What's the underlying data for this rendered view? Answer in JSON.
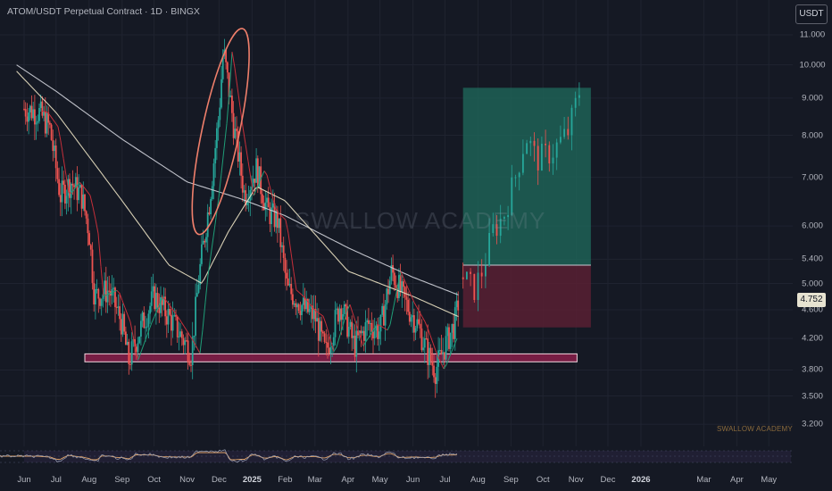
{
  "header": {
    "title": "ATOM/USDT Perpetual Contract · 1D · BINGX",
    "currency_button": "USDT"
  },
  "last_price_label": "4.752",
  "watermark": "SWALLOW ACADEMY",
  "colors": {
    "background": "#151924",
    "up_candle": "#26a69a",
    "down_candle": "#ef5350",
    "ma_long": "#d1d4dc",
    "ma_mid": "#ece3c4",
    "ma_short_red": "#c62f3a",
    "ma_short_green": "#1f9e78",
    "support_zone": "#8a1e4a",
    "target_zone": "#1f6b5c",
    "stop_zone": "#5c1f33",
    "ellipse": "#ef7f6b"
  },
  "chart_data": {
    "type": "candlestick",
    "price_scale": "log",
    "y_ticks": [
      "11.000",
      "10.000",
      "9.000",
      "8.000",
      "7.000",
      "6.000",
      "5.400",
      "5.000",
      "4.600",
      "4.200",
      "3.800",
      "3.500",
      "3.200"
    ],
    "x_ticks": [
      "Jun",
      "Jul",
      "Aug",
      "Sep",
      "Oct",
      "Nov",
      "Dec",
      "2025",
      "Feb",
      "Mar",
      "Apr",
      "May",
      "Jun",
      "Jul",
      "Aug",
      "Sep",
      "Oct",
      "Nov",
      "Dec",
      "2026",
      "Mar",
      "Apr",
      "May"
    ],
    "price_path": [
      {
        "x": "2024-06-01",
        "y": 8.7
      },
      {
        "x": "2024-06-15",
        "y": 8.6
      },
      {
        "x": "2024-06-25",
        "y": 8.2
      },
      {
        "x": "2024-07-05",
        "y": 6.6
      },
      {
        "x": "2024-07-15",
        "y": 6.9
      },
      {
        "x": "2024-07-25",
        "y": 6.6
      },
      {
        "x": "2024-08-01",
        "y": 5.9
      },
      {
        "x": "2024-08-06",
        "y": 4.8
      },
      {
        "x": "2024-08-20",
        "y": 4.9
      },
      {
        "x": "2024-09-01",
        "y": 4.4
      },
      {
        "x": "2024-09-07",
        "y": 3.9
      },
      {
        "x": "2024-09-20",
        "y": 4.4
      },
      {
        "x": "2024-10-01",
        "y": 4.8
      },
      {
        "x": "2024-10-15",
        "y": 4.5
      },
      {
        "x": "2024-10-28",
        "y": 4.2
      },
      {
        "x": "2024-11-05",
        "y": 4.0
      },
      {
        "x": "2024-11-12",
        "y": 5.1
      },
      {
        "x": "2024-11-22",
        "y": 6.5
      },
      {
        "x": "2024-12-01",
        "y": 8.6
      },
      {
        "x": "2024-12-05",
        "y": 10.5
      },
      {
        "x": "2024-12-15",
        "y": 8.2
      },
      {
        "x": "2024-12-25",
        "y": 6.6
      },
      {
        "x": "2025-01-05",
        "y": 7.2
      },
      {
        "x": "2025-01-15",
        "y": 6.3
      },
      {
        "x": "2025-01-25",
        "y": 6.1
      },
      {
        "x": "2025-02-03",
        "y": 4.9
      },
      {
        "x": "2025-02-10",
        "y": 4.8
      },
      {
        "x": "2025-02-20",
        "y": 4.6
      },
      {
        "x": "2025-03-01",
        "y": 4.5
      },
      {
        "x": "2025-03-11",
        "y": 4.0
      },
      {
        "x": "2025-03-25",
        "y": 4.7
      },
      {
        "x": "2025-04-07",
        "y": 4.1
      },
      {
        "x": "2025-04-20",
        "y": 4.4
      },
      {
        "x": "2025-05-01",
        "y": 4.3
      },
      {
        "x": "2025-05-12",
        "y": 5.2
      },
      {
        "x": "2025-05-25",
        "y": 4.7
      },
      {
        "x": "2025-06-05",
        "y": 4.4
      },
      {
        "x": "2025-06-15",
        "y": 4.0
      },
      {
        "x": "2025-06-22",
        "y": 3.8
      },
      {
        "x": "2025-07-01",
        "y": 4.1
      },
      {
        "x": "2025-07-10",
        "y": 4.4
      },
      {
        "x": "2025-07-14",
        "y": 4.75
      }
    ],
    "projection_path": [
      {
        "x": "2025-07-18",
        "y": 5.1
      },
      {
        "x": "2025-07-28",
        "y": 4.9
      },
      {
        "x": "2025-08-05",
        "y": 5.2
      },
      {
        "x": "2025-08-15",
        "y": 5.9
      },
      {
        "x": "2025-08-25",
        "y": 6.2
      },
      {
        "x": "2025-09-05",
        "y": 7.0
      },
      {
        "x": "2025-09-15",
        "y": 8.0
      },
      {
        "x": "2025-09-25",
        "y": 7.4
      },
      {
        "x": "2025-10-10",
        "y": 7.6
      },
      {
        "x": "2025-10-25",
        "y": 8.1
      },
      {
        "x": "2025-11-05",
        "y": 9.3
      }
    ],
    "moving_averages": [
      {
        "period": "long",
        "values": [
          {
            "x": "2024-05-25",
            "y": 10.0
          },
          {
            "x": "2024-07-01",
            "y": 9.2
          },
          {
            "x": "2024-09-01",
            "y": 7.9
          },
          {
            "x": "2024-11-01",
            "y": 6.9
          },
          {
            "x": "2024-12-20",
            "y": 6.55
          },
          {
            "x": "2025-02-01",
            "y": 6.2
          },
          {
            "x": "2025-04-01",
            "y": 5.6
          },
          {
            "x": "2025-06-01",
            "y": 5.1
          },
          {
            "x": "2025-07-14",
            "y": 4.82
          }
        ]
      },
      {
        "period": "mid",
        "values": [
          {
            "x": "2024-05-25",
            "y": 9.8
          },
          {
            "x": "2024-07-01",
            "y": 8.6
          },
          {
            "x": "2024-09-01",
            "y": 6.5
          },
          {
            "x": "2024-10-15",
            "y": 5.3
          },
          {
            "x": "2024-11-15",
            "y": 5.0
          },
          {
            "x": "2024-12-10",
            "y": 5.9
          },
          {
            "x": "2025-01-05",
            "y": 6.8
          },
          {
            "x": "2025-02-01",
            "y": 6.5
          },
          {
            "x": "2025-04-01",
            "y": 5.2
          },
          {
            "x": "2025-06-01",
            "y": 4.8
          },
          {
            "x": "2025-07-14",
            "y": 4.5
          }
        ]
      }
    ],
    "support_zone": {
      "from": "2024-07-28",
      "to": "2025-11-02",
      "low": 3.9,
      "high": 4.0
    },
    "position": {
      "start": "2025-07-18",
      "end": "2025-11-15",
      "entry": 5.3,
      "target": 9.3,
      "stop": 4.35
    },
    "highlight_ellipse": {
      "from": "2024-11-15",
      "to": "2024-12-20",
      "low": 5.8,
      "high": 11.3
    }
  }
}
